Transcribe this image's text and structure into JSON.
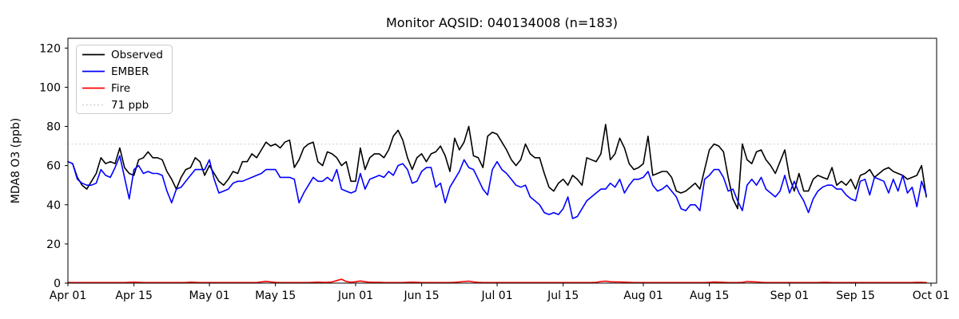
{
  "title": "Monitor AQSID: 040134008 (n=183)",
  "axes": {
    "ylabel": "MDA8 O3 (ppb)",
    "yticks": [
      0,
      20,
      40,
      60,
      80,
      100,
      120
    ],
    "ylim": [
      0,
      125
    ],
    "xlim_days": [
      0,
      183
    ],
    "xticks": [
      {
        "label": "Apr 01",
        "day": 0
      },
      {
        "label": "Apr 15",
        "day": 14
      },
      {
        "label": "May 01",
        "day": 30
      },
      {
        "label": "May 15",
        "day": 44
      },
      {
        "label": "Jun 01",
        "day": 61
      },
      {
        "label": "Jun 15",
        "day": 75
      },
      {
        "label": "Jul 01",
        "day": 91
      },
      {
        "label": "Jul 15",
        "day": 105
      },
      {
        "label": "Aug 01",
        "day": 122
      },
      {
        "label": "Aug 15",
        "day": 136
      },
      {
        "label": "Sep 01",
        "day": 153
      },
      {
        "label": "Sep 15",
        "day": 167
      },
      {
        "label": "Oct 01",
        "day": 183
      }
    ],
    "grid": false
  },
  "legend": {
    "position": "upper-left",
    "items": [
      {
        "label": "Observed",
        "style": "solid",
        "color": "#000000"
      },
      {
        "label": "EMBER",
        "style": "solid",
        "color": "#0000ff"
      },
      {
        "label": "Fire",
        "style": "solid",
        "color": "#ff0000"
      },
      {
        "label": "71 ppb",
        "style": "dotted",
        "color": "#d3d3d3"
      }
    ]
  },
  "threshold": {
    "value": 71,
    "label": "71 ppb",
    "color": "#d3d3d3",
    "style": "dotted"
  },
  "chart_data": {
    "type": "line",
    "title": "Monitor AQSID: 040134008 (n=183)",
    "xlabel": "",
    "ylabel": "MDA8 O3 (ppb)",
    "x_unit": "daily, day index 0 = Apr 01, last point = Sep 30",
    "n_points": 183,
    "threshold_value": 71,
    "series": [
      {
        "name": "Observed",
        "color": "#000000",
        "values": [
          62,
          61,
          54,
          50,
          48,
          52,
          56,
          64,
          61,
          62,
          61,
          69,
          59,
          56,
          55,
          63,
          64,
          67,
          64,
          64,
          63,
          57,
          53,
          48,
          54,
          58,
          59,
          64,
          62,
          55,
          60,
          56,
          52,
          50,
          53,
          57,
          56,
          62,
          62,
          66,
          64,
          68,
          72,
          70,
          71,
          69,
          72,
          73,
          59,
          63,
          69,
          71,
          72,
          62,
          60,
          67,
          66,
          64,
          60,
          62,
          52,
          52,
          69,
          58,
          64,
          66,
          66,
          64,
          68,
          75,
          78,
          73,
          64,
          58,
          64,
          66,
          62,
          66,
          67,
          70,
          65,
          57,
          74,
          68,
          72,
          80,
          65,
          64,
          59,
          75,
          77,
          76,
          72,
          68,
          63,
          60,
          63,
          71,
          66,
          64,
          64,
          56,
          49,
          47,
          51,
          53,
          50,
          55,
          53,
          50,
          64,
          63,
          62,
          66,
          81,
          63,
          66,
          74,
          69,
          61,
          58,
          59,
          61,
          75,
          55,
          56,
          57,
          57,
          54,
          47,
          46,
          47,
          49,
          51,
          48,
          58,
          68,
          71,
          70,
          67,
          54,
          43,
          38,
          71,
          63,
          61,
          67,
          68,
          63,
          60,
          56,
          62,
          68,
          54,
          47,
          56,
          47,
          47,
          53,
          55,
          54,
          53,
          59,
          50,
          52,
          50,
          53,
          48,
          55,
          56,
          58,
          54,
          56,
          58,
          59,
          57,
          56,
          55,
          53,
          54,
          55,
          60,
          44
        ]
      },
      {
        "name": "EMBER",
        "color": "#0000ff",
        "values": [
          62,
          61,
          53,
          51,
          50,
          50,
          51,
          58,
          55,
          54,
          59,
          65,
          54,
          43,
          58,
          60,
          56,
          57,
          56,
          56,
          55,
          47,
          41,
          48,
          49,
          52,
          55,
          58,
          58,
          58,
          63,
          53,
          46,
          47,
          48,
          51,
          52,
          52,
          53,
          54,
          55,
          56,
          58,
          58,
          58,
          54,
          54,
          54,
          53,
          41,
          46,
          50,
          54,
          52,
          52,
          54,
          52,
          58,
          48,
          47,
          46,
          47,
          56,
          48,
          53,
          54,
          55,
          54,
          57,
          55,
          60,
          61,
          58,
          51,
          52,
          57,
          59,
          59,
          49,
          51,
          41,
          49,
          53,
          57,
          63,
          59,
          58,
          53,
          48,
          45,
          58,
          62,
          58,
          56,
          53,
          50,
          49,
          50,
          44,
          42,
          40,
          36,
          35,
          36,
          35,
          38,
          44,
          33,
          34,
          38,
          42,
          44,
          46,
          48,
          48,
          51,
          49,
          53,
          46,
          50,
          53,
          53,
          54,
          57,
          50,
          47,
          48,
          50,
          47,
          44,
          38,
          37,
          40,
          40,
          37,
          53,
          55,
          58,
          58,
          54,
          47,
          48,
          42,
          37,
          50,
          53,
          50,
          54,
          48,
          46,
          44,
          47,
          55,
          46,
          52,
          46,
          42,
          36,
          43,
          47,
          49,
          50,
          50,
          48,
          48,
          45,
          43,
          42,
          52,
          53,
          45,
          54,
          53,
          52,
          46,
          53,
          47,
          55,
          46,
          49,
          39,
          52,
          45
        ]
      },
      {
        "name": "Fire",
        "color": "#ff0000",
        "values": [
          0.3,
          0.3,
          0.3,
          0.3,
          0.3,
          0.3,
          0.3,
          0.3,
          0.3,
          0.3,
          0.3,
          0.3,
          0.3,
          0.4,
          0.5,
          0.4,
          0.3,
          0.3,
          0.3,
          0.3,
          0.3,
          0.3,
          0.3,
          0.3,
          0.3,
          0.3,
          0.5,
          0.4,
          0.3,
          0.3,
          0.3,
          0.3,
          0.3,
          0.3,
          0.3,
          0.3,
          0.3,
          0.3,
          0.3,
          0.3,
          0.3,
          0.6,
          0.9,
          0.6,
          0.4,
          0.3,
          0.3,
          0.3,
          0.3,
          0.3,
          0.3,
          0.3,
          0.4,
          0.5,
          0.4,
          0.4,
          0.6,
          1.3,
          2.0,
          0.8,
          0.5,
          0.7,
          1.1,
          0.7,
          0.5,
          0.4,
          0.4,
          0.3,
          0.3,
          0.3,
          0.3,
          0.3,
          0.4,
          0.5,
          0.4,
          0.3,
          0.3,
          0.3,
          0.3,
          0.3,
          0.3,
          0.3,
          0.4,
          0.6,
          0.8,
          1.0,
          0.6,
          0.4,
          0.3,
          0.3,
          0.3,
          0.3,
          0.3,
          0.3,
          0.3,
          0.3,
          0.3,
          0.3,
          0.3,
          0.3,
          0.3,
          0.3,
          0.3,
          0.3,
          0.3,
          0.3,
          0.3,
          0.3,
          0.3,
          0.3,
          0.3,
          0.3,
          0.4,
          0.8,
          1.0,
          0.7,
          0.6,
          0.6,
          0.5,
          0.4,
          0.3,
          0.3,
          0.3,
          0.3,
          0.3,
          0.3,
          0.3,
          0.3,
          0.3,
          0.3,
          0.3,
          0.3,
          0.3,
          0.3,
          0.3,
          0.3,
          0.4,
          0.6,
          0.5,
          0.4,
          0.3,
          0.3,
          0.3,
          0.4,
          0.8,
          0.7,
          0.6,
          0.4,
          0.3,
          0.3,
          0.3,
          0.3,
          0.3,
          0.3,
          0.3,
          0.3,
          0.3,
          0.3,
          0.3,
          0.3,
          0.4,
          0.4,
          0.3,
          0.3,
          0.3,
          0.3,
          0.3,
          0.3,
          0.3,
          0.3,
          0.3,
          0.3,
          0.3,
          0.3,
          0.3,
          0.3,
          0.3,
          0.3,
          0.3,
          0.3,
          0.4,
          0.4,
          0.3
        ]
      }
    ]
  }
}
